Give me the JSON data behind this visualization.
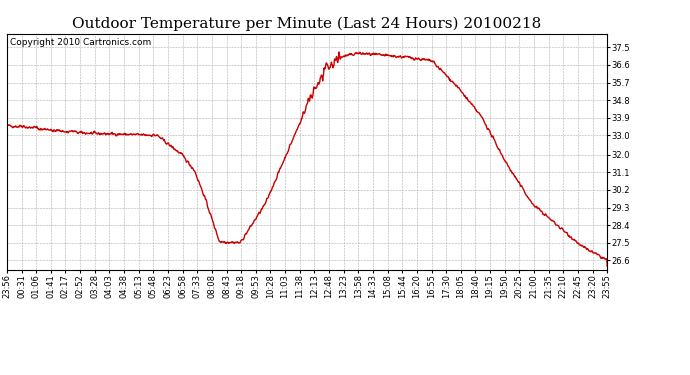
{
  "title": "Outdoor Temperature per Minute (Last 24 Hours) 20100218",
  "copyright": "Copyright 2010 Cartronics.com",
  "line_color": "#cc0000",
  "bg_color": "#ffffff",
  "plot_bg_color": "#ffffff",
  "grid_color": "#999999",
  "yticks": [
    26.6,
    27.5,
    28.4,
    29.3,
    30.2,
    31.1,
    32.0,
    33.0,
    33.9,
    34.8,
    35.7,
    36.6,
    37.5
  ],
  "ylim": [
    26.1,
    38.2
  ],
  "xtick_labels": [
    "23:56",
    "00:31",
    "01:06",
    "01:41",
    "02:17",
    "02:52",
    "03:28",
    "04:03",
    "04:38",
    "05:13",
    "05:48",
    "06:23",
    "06:58",
    "07:33",
    "08:08",
    "08:43",
    "09:18",
    "09:53",
    "10:28",
    "11:03",
    "11:38",
    "12:13",
    "12:48",
    "13:23",
    "13:58",
    "14:33",
    "15:08",
    "15:44",
    "16:20",
    "16:55",
    "17:30",
    "18:05",
    "18:40",
    "19:15",
    "19:50",
    "20:25",
    "21:00",
    "21:35",
    "22:10",
    "22:45",
    "23:20",
    "23:55"
  ],
  "title_fontsize": 11,
  "copyright_fontsize": 6.5,
  "tick_fontsize": 6,
  "line_width": 1.0,
  "key_times": [
    0,
    50,
    120,
    200,
    280,
    360,
    420,
    450,
    475,
    510,
    560,
    620,
    680,
    730,
    760,
    800,
    840,
    900,
    960,
    1020,
    1080,
    1140,
    1200,
    1260,
    1320,
    1380,
    1440
  ],
  "key_temps": [
    33.5,
    33.4,
    33.2,
    33.1,
    33.05,
    33.0,
    32.0,
    31.2,
    29.8,
    27.55,
    27.5,
    29.5,
    32.5,
    35.0,
    36.2,
    37.0,
    37.2,
    37.1,
    37.0,
    36.8,
    35.5,
    33.9,
    31.5,
    29.5,
    28.4,
    27.3,
    26.6
  ]
}
